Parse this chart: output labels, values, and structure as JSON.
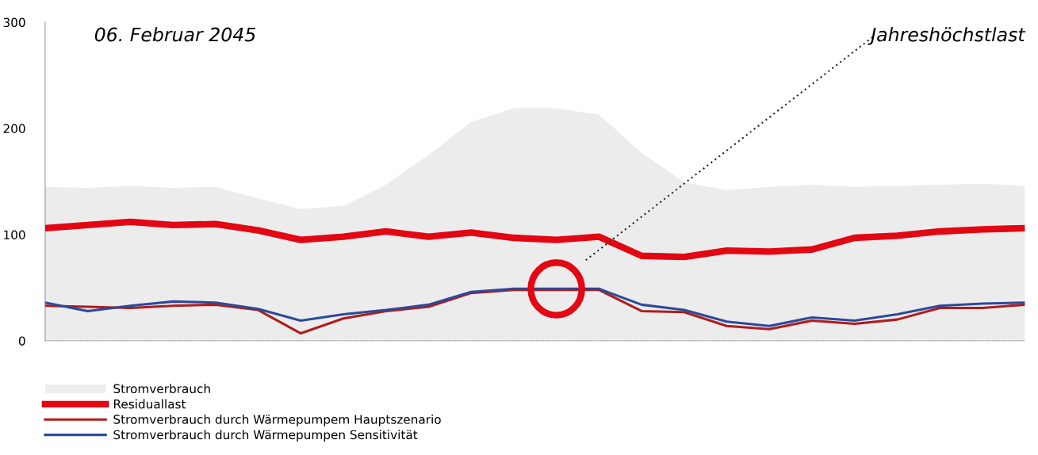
{
  "chart_data": {
    "type": "line",
    "title": "06. Februar 2045",
    "categories": [
      null,
      null,
      null,
      null,
      null,
      null,
      null,
      null,
      null,
      null,
      null,
      null,
      null,
      null,
      null,
      null,
      null,
      null,
      null,
      null,
      null,
      null,
      null,
      null
    ],
    "ylim": [
      0,
      300
    ],
    "yticks": [
      0,
      100,
      200,
      300
    ],
    "grid": false,
    "legend": "bottom left",
    "annotations": [
      "Jahreshöchstlast"
    ],
    "series": [
      {
        "name": "Stromverbrauch",
        "type": "area",
        "color": "#ececec",
        "values": [
          145,
          144,
          146,
          144,
          145,
          134,
          124,
          127,
          147,
          175,
          206,
          219,
          219,
          213,
          177,
          149,
          142,
          145,
          147,
          145,
          146,
          147,
          148,
          146
        ]
      },
      {
        "name": "Residuallast",
        "color": "#e30613",
        "values": [
          106,
          109,
          112,
          109,
          110,
          104,
          95,
          98,
          103,
          98,
          102,
          97,
          95,
          98,
          80,
          79,
          85,
          84,
          86,
          97,
          99,
          103,
          105,
          106
        ]
      },
      {
        "name": "Stromverbrauch durch Wärmepumpem Hauptszenario",
        "color": "#b01c1c",
        "values": [
          33,
          32,
          31,
          33,
          34,
          29,
          7,
          21,
          28,
          32,
          45,
          48,
          48,
          48,
          28,
          27,
          14,
          11,
          19,
          16,
          20,
          31,
          31,
          34
        ]
      },
      {
        "name": "Stromverbrauch durch Wärmepumpen Sensitivität",
        "color": "#2b4a9b",
        "values": [
          36,
          28,
          33,
          37,
          36,
          30,
          19,
          25,
          29,
          34,
          46,
          49,
          49,
          49,
          34,
          29,
          18,
          14,
          22,
          19,
          25,
          33,
          35,
          36
        ]
      }
    ]
  }
}
